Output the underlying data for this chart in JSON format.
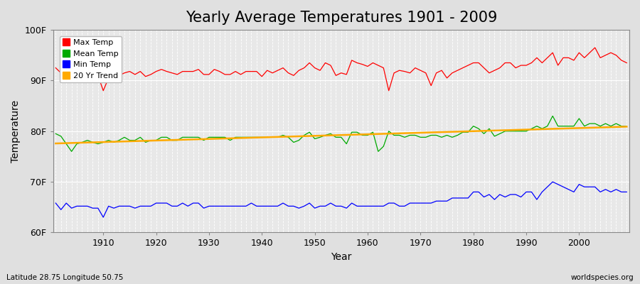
{
  "title": "Yearly Average Temperatures 1901 - 2009",
  "xlabel": "Year",
  "ylabel": "Temperature",
  "lat_lon_label": "Latitude 28.75 Longitude 50.75",
  "source_label": "worldspecies.org",
  "years": [
    1901,
    1902,
    1903,
    1904,
    1905,
    1906,
    1907,
    1908,
    1909,
    1910,
    1911,
    1912,
    1913,
    1914,
    1915,
    1916,
    1917,
    1918,
    1919,
    1920,
    1921,
    1922,
    1923,
    1924,
    1925,
    1926,
    1927,
    1928,
    1929,
    1930,
    1931,
    1932,
    1933,
    1934,
    1935,
    1936,
    1937,
    1938,
    1939,
    1940,
    1941,
    1942,
    1943,
    1944,
    1945,
    1946,
    1947,
    1948,
    1949,
    1950,
    1951,
    1952,
    1953,
    1954,
    1955,
    1956,
    1957,
    1958,
    1959,
    1960,
    1961,
    1962,
    1963,
    1964,
    1965,
    1966,
    1967,
    1968,
    1969,
    1970,
    1971,
    1972,
    1973,
    1974,
    1975,
    1976,
    1977,
    1978,
    1979,
    1980,
    1981,
    1982,
    1983,
    1984,
    1985,
    1986,
    1987,
    1988,
    1989,
    1990,
    1991,
    1992,
    1993,
    1994,
    1995,
    1996,
    1997,
    1998,
    1999,
    2000,
    2001,
    2002,
    2003,
    2004,
    2005,
    2006,
    2007,
    2008,
    2009
  ],
  "max_temp": [
    92.5,
    91.5,
    91.8,
    90.2,
    91.3,
    91.0,
    91.5,
    91.0,
    91.0,
    88.0,
    90.5,
    91.2,
    91.0,
    91.5,
    91.8,
    91.2,
    91.8,
    90.8,
    91.2,
    91.8,
    92.2,
    91.8,
    91.5,
    91.2,
    91.8,
    91.8,
    91.8,
    92.2,
    91.2,
    91.2,
    92.2,
    91.8,
    91.2,
    91.2,
    91.8,
    91.2,
    91.8,
    91.8,
    91.8,
    90.8,
    92.0,
    91.5,
    92.0,
    92.5,
    91.5,
    91.0,
    92.0,
    92.5,
    93.5,
    92.5,
    92.0,
    93.5,
    93.0,
    91.0,
    91.5,
    91.2,
    94.0,
    93.5,
    93.2,
    92.8,
    93.5,
    93.0,
    92.5,
    88.0,
    91.5,
    92.0,
    91.8,
    91.5,
    92.5,
    92.0,
    91.5,
    89.0,
    91.5,
    92.0,
    90.5,
    91.5,
    92.0,
    92.5,
    93.0,
    93.5,
    93.5,
    92.5,
    91.5,
    92.0,
    92.5,
    93.5,
    93.5,
    92.5,
    93.0,
    93.0,
    93.5,
    94.5,
    93.5,
    94.5,
    95.5,
    93.0,
    94.5,
    94.5,
    94.0,
    95.5,
    94.5,
    95.5,
    96.5,
    94.5,
    95.0,
    95.5,
    95.0,
    94.0,
    93.5
  ],
  "mean_temp": [
    79.5,
    79.0,
    77.5,
    76.0,
    77.5,
    77.8,
    78.2,
    77.8,
    77.5,
    77.8,
    78.2,
    77.8,
    78.2,
    78.8,
    78.2,
    78.2,
    78.8,
    77.8,
    78.2,
    78.2,
    78.8,
    78.8,
    78.2,
    78.2,
    78.8,
    78.8,
    78.8,
    78.8,
    78.2,
    78.8,
    78.8,
    78.8,
    78.8,
    78.2,
    78.8,
    78.8,
    78.8,
    78.8,
    78.8,
    78.8,
    78.8,
    78.8,
    78.8,
    79.2,
    78.8,
    77.8,
    78.2,
    79.2,
    79.8,
    78.5,
    78.8,
    79.2,
    79.5,
    78.8,
    78.8,
    77.5,
    79.8,
    79.8,
    79.2,
    79.2,
    79.8,
    76.0,
    77.0,
    80.0,
    79.2,
    79.2,
    78.8,
    79.2,
    79.2,
    78.8,
    78.8,
    79.2,
    79.2,
    78.8,
    79.2,
    78.8,
    79.2,
    79.8,
    79.8,
    81.0,
    80.5,
    79.5,
    80.5,
    79.0,
    79.5,
    80.0,
    80.0,
    80.0,
    80.0,
    80.0,
    80.5,
    81.0,
    80.5,
    81.0,
    83.0,
    81.0,
    81.0,
    81.0,
    81.0,
    82.5,
    81.0,
    81.5,
    81.5,
    81.0,
    81.5,
    81.0,
    81.5,
    81.0,
    81.0
  ],
  "min_temp": [
    65.8,
    64.5,
    65.8,
    64.8,
    65.2,
    65.2,
    65.2,
    64.8,
    64.8,
    63.0,
    65.2,
    64.8,
    65.2,
    65.2,
    65.2,
    64.8,
    65.2,
    65.2,
    65.2,
    65.8,
    65.8,
    65.8,
    65.2,
    65.2,
    65.8,
    65.2,
    65.8,
    65.8,
    64.8,
    65.2,
    65.2,
    65.2,
    65.2,
    65.2,
    65.2,
    65.2,
    65.2,
    65.8,
    65.2,
    65.2,
    65.2,
    65.2,
    65.2,
    65.8,
    65.2,
    65.2,
    64.8,
    65.2,
    65.8,
    64.8,
    65.2,
    65.2,
    65.8,
    65.2,
    65.2,
    64.8,
    65.8,
    65.2,
    65.2,
    65.2,
    65.2,
    65.2,
    65.2,
    65.8,
    65.8,
    65.2,
    65.2,
    65.8,
    65.8,
    65.8,
    65.8,
    65.8,
    66.2,
    66.2,
    66.2,
    66.8,
    66.8,
    66.8,
    66.8,
    68.0,
    68.0,
    67.0,
    67.5,
    66.5,
    67.5,
    67.0,
    67.5,
    67.5,
    67.0,
    68.0,
    68.0,
    66.5,
    68.0,
    69.0,
    70.0,
    69.5,
    69.0,
    68.5,
    68.0,
    69.5,
    69.0,
    69.0,
    69.0,
    68.0,
    68.5,
    68.0,
    68.5,
    68.0,
    68.0
  ],
  "bg_color": "#e0e0e0",
  "plot_bg_color": "#e8e8e8",
  "max_color": "#ff0000",
  "mean_color": "#00aa00",
  "min_color": "#0000ff",
  "trend_color": "#ffaa00",
  "grid_color": "#ffffff",
  "ylim": [
    60,
    100
  ],
  "yticks": [
    60,
    70,
    80,
    90,
    100
  ],
  "ytick_labels": [
    "60F",
    "70F",
    "80F",
    "90F",
    "100F"
  ],
  "title_fontsize": 15,
  "axis_fontsize": 10,
  "tick_fontsize": 9
}
